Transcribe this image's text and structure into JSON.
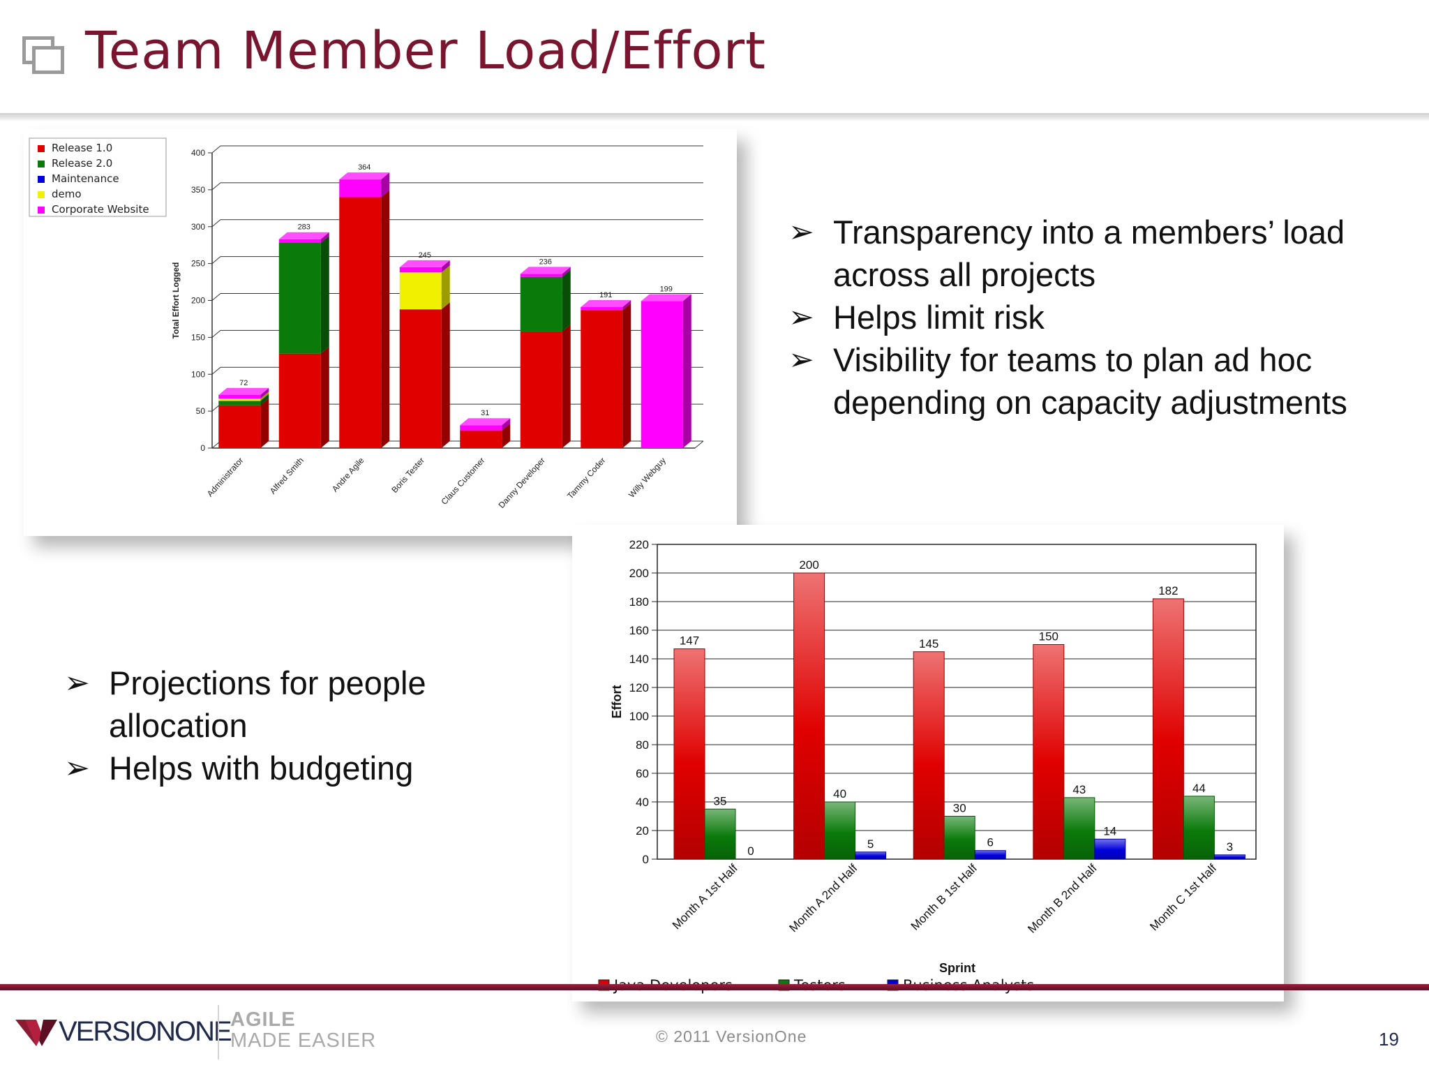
{
  "slide": {
    "title": "Team Member Load/Effort",
    "page_number": "19",
    "copyright": "© 2011 VersionOne",
    "logo_text": "VERSIONONE",
    "tagline_line1": "AGILE",
    "tagline_line2": "MADE EASIER"
  },
  "bullets_top": [
    {
      "text": "Transparency into a members’ load across all projects",
      "line1": "Transparency into a members’ load",
      "line2": "across all projects"
    },
    {
      "text": "Helps limit risk",
      "line1": "Helps limit risk"
    },
    {
      "text": "Visibility for teams to plan ad hoc depending on capacity adjustments",
      "line1": "Visibility for teams to plan ad hoc",
      "line2": "depending on capacity adjustments"
    }
  ],
  "bullets_left": [
    {
      "text": "Projections for people allocation",
      "line1": "Projections for people",
      "line2": "allocation"
    },
    {
      "text": "Helps with budgeting",
      "line1": "Helps with budgeting"
    }
  ],
  "bullet_glyph": "➢",
  "chart_data": [
    {
      "type": "bar",
      "stacked": true,
      "ylabel": "Total Effort Logged",
      "xlabel": "",
      "ylim": [
        0,
        400
      ],
      "yticks": [
        0,
        50,
        100,
        150,
        200,
        250,
        300,
        350,
        400
      ],
      "grid": true,
      "legend_position": "top-left",
      "categories": [
        "Administrator",
        "Alfred Smith",
        "Andre Agile",
        "Boris Tester",
        "Claus Customer",
        "Danny Developer",
        "Tammy Coder",
        "Willy Webguy"
      ],
      "totals": [
        72,
        283,
        364,
        245,
        31,
        236,
        191,
        199
      ],
      "series": [
        {
          "name": "Release 1.0",
          "color": "#e00000",
          "values": [
            58,
            128,
            340,
            188,
            24,
            158,
            187,
            0
          ]
        },
        {
          "name": "Release 2.0",
          "color": "#0a7a0a",
          "values": [
            6,
            150,
            0,
            0,
            0,
            74,
            0,
            0
          ]
        },
        {
          "name": "Maintenance",
          "color": "#0000dd",
          "values": [
            0,
            0,
            0,
            0,
            0,
            0,
            0,
            0
          ]
        },
        {
          "name": "demo",
          "color": "#f0f000",
          "values": [
            3,
            0,
            0,
            50,
            0,
            0,
            0,
            0
          ]
        },
        {
          "name": "Corporate Website",
          "color": "#ff00ff",
          "values": [
            5,
            5,
            24,
            7,
            7,
            4,
            4,
            199
          ]
        }
      ]
    },
    {
      "type": "bar",
      "stacked": false,
      "xlabel": "Sprint",
      "ylabel": "Effort",
      "ylim": [
        0,
        220
      ],
      "yticks": [
        0,
        20,
        40,
        60,
        80,
        100,
        120,
        140,
        160,
        180,
        200,
        220
      ],
      "grid": true,
      "legend_position": "bottom",
      "categories": [
        "Month A 1st Half",
        "Month A 2nd Half",
        "Month B 1st Half",
        "Month B 2nd Half",
        "Month C 1st Half"
      ],
      "series": [
        {
          "name": "Java Developers",
          "color": "#e00000",
          "values": [
            147,
            200,
            145,
            150,
            182
          ]
        },
        {
          "name": "Testers",
          "color": "#0a7a0a",
          "values": [
            35,
            40,
            30,
            43,
            44
          ]
        },
        {
          "name": "Business Analysts",
          "color": "#0000dd",
          "values": [
            0,
            5,
            6,
            14,
            3
          ]
        }
      ]
    }
  ]
}
